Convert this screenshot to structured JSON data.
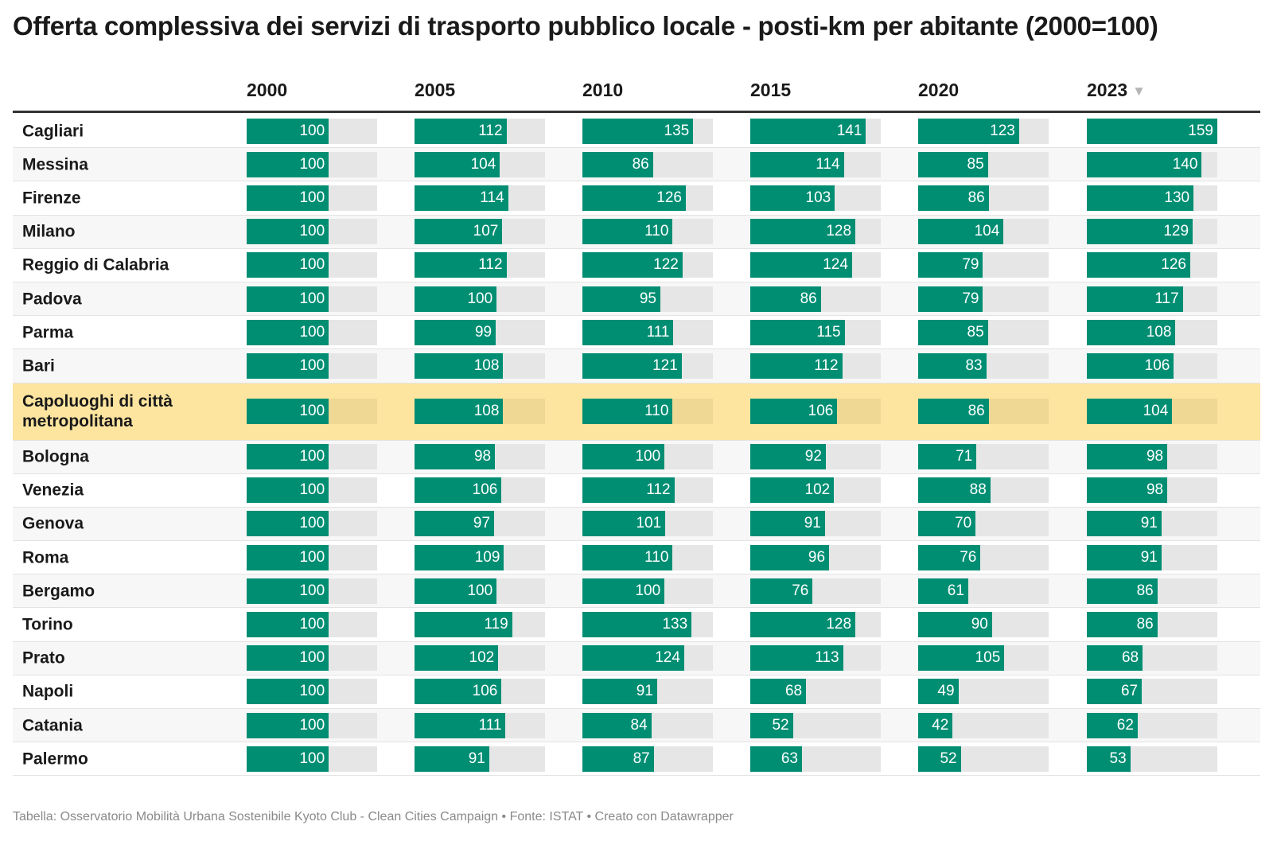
{
  "title": "Offerta complessiva dei servizi di trasporto pubblico locale - posti-km per abitante (2000=100)",
  "footer": "Tabella: Osservatorio Mobilità Urbana Sostenibile Kyoto Club - Clean Cities Campaign • Fonte: ISTAT • Creato con Datawrapper",
  "colors": {
    "bar": "#008e73",
    "track": "#e6e6e6",
    "highlight": "#fde59f",
    "sort_icon": "#b5b5b5"
  },
  "chart_data": {
    "type": "table",
    "bar_scale_max": 159,
    "sorted_by": "2023",
    "sort_direction": "descending",
    "sort_icon": "triangle-down-icon",
    "highlighted_row": "Capoluoghi di città metropolitana",
    "columns": [
      "2000",
      "2005",
      "2010",
      "2015",
      "2020",
      "2023"
    ],
    "rows": [
      {
        "name": "Cagliari",
        "values": [
          100,
          112,
          135,
          141,
          123,
          159
        ]
      },
      {
        "name": "Messina",
        "values": [
          100,
          104,
          86,
          114,
          85,
          140
        ]
      },
      {
        "name": "Firenze",
        "values": [
          100,
          114,
          126,
          103,
          86,
          130
        ]
      },
      {
        "name": "Milano",
        "values": [
          100,
          107,
          110,
          128,
          104,
          129
        ]
      },
      {
        "name": "Reggio di Calabria",
        "values": [
          100,
          112,
          122,
          124,
          79,
          126
        ]
      },
      {
        "name": "Padova",
        "values": [
          100,
          100,
          95,
          86,
          79,
          117
        ]
      },
      {
        "name": "Parma",
        "values": [
          100,
          99,
          111,
          115,
          85,
          108
        ]
      },
      {
        "name": "Bari",
        "values": [
          100,
          108,
          121,
          112,
          83,
          106
        ]
      },
      {
        "name": "Capoluoghi di città metropolitana",
        "values": [
          100,
          108,
          110,
          106,
          86,
          104
        ]
      },
      {
        "name": "Bologna",
        "values": [
          100,
          98,
          100,
          92,
          71,
          98
        ]
      },
      {
        "name": "Venezia",
        "values": [
          100,
          106,
          112,
          102,
          88,
          98
        ]
      },
      {
        "name": "Genova",
        "values": [
          100,
          97,
          101,
          91,
          70,
          91
        ]
      },
      {
        "name": "Roma",
        "values": [
          100,
          109,
          110,
          96,
          76,
          91
        ]
      },
      {
        "name": "Bergamo",
        "values": [
          100,
          100,
          100,
          76,
          61,
          86
        ]
      },
      {
        "name": "Torino",
        "values": [
          100,
          119,
          133,
          128,
          90,
          86
        ]
      },
      {
        "name": "Prato",
        "values": [
          100,
          102,
          124,
          113,
          105,
          68
        ]
      },
      {
        "name": "Napoli",
        "values": [
          100,
          106,
          91,
          68,
          49,
          67
        ]
      },
      {
        "name": "Catania",
        "values": [
          100,
          111,
          84,
          52,
          42,
          62
        ]
      },
      {
        "name": "Palermo",
        "values": [
          100,
          91,
          87,
          63,
          52,
          53
        ]
      }
    ]
  }
}
